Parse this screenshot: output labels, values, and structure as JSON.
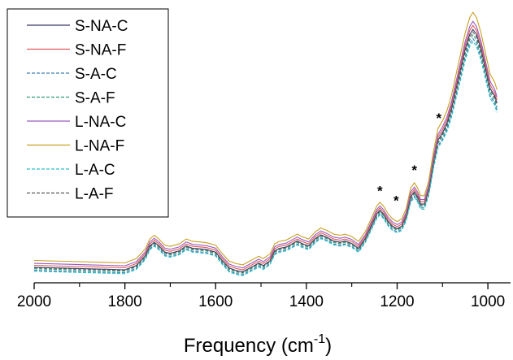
{
  "chart_data": {
    "type": "line",
    "title": "",
    "xlabel": "Frequency (cm",
    "xlabel_sup": "-1",
    "xlabel_end": ")",
    "ylabel": "",
    "xlim": [
      2000,
      950
    ],
    "ylim": [
      -0.05,
      1.05
    ],
    "x_reversed": true,
    "x_ticks": [
      2000,
      1800,
      1600,
      1400,
      1200,
      1000
    ],
    "x_tick_labels": [
      "2000",
      "1800",
      "1600",
      "1400",
      "1200",
      "1000"
    ],
    "grid": false,
    "legend_position": "top-left",
    "annotations": [
      {
        "text": "*",
        "x": 1238,
        "y": 0.305
      },
      {
        "text": "*",
        "x": 1202,
        "y": 0.265
      },
      {
        "text": "*",
        "x": 1162,
        "y": 0.39
      },
      {
        "text": "*",
        "x": 1108,
        "y": 0.6
      }
    ],
    "series": [
      {
        "name": "S-NA-C",
        "color": "#3b3b6b",
        "dash": "solid",
        "offset": 0.0,
        "peak_scale": 1.0
      },
      {
        "name": "S-NA-F",
        "color": "#e05a5a",
        "dash": "solid",
        "offset": 0.008,
        "peak_scale": 1.01
      },
      {
        "name": "S-A-C",
        "color": "#3a7fb0",
        "dash": "dashed",
        "offset": -0.012,
        "peak_scale": 0.97
      },
      {
        "name": "S-A-F",
        "color": "#2e9a7a",
        "dash": "dashed",
        "offset": -0.006,
        "peak_scale": 0.98
      },
      {
        "name": "L-NA-C",
        "color": "#9a5cc0",
        "dash": "solid",
        "offset": 0.016,
        "peak_scale": 1.02
      },
      {
        "name": "L-NA-F",
        "color": "#c9a020",
        "dash": "solid",
        "offset": 0.028,
        "peak_scale": 1.05
      },
      {
        "name": "L-A-C",
        "color": "#2bbfc9",
        "dash": "dashed",
        "offset": -0.016,
        "peak_scale": 0.96
      },
      {
        "name": "L-A-F",
        "color": "#555555",
        "dash": "dashed",
        "offset": -0.002,
        "peak_scale": 0.99
      }
    ],
    "base_curve": {
      "x": [
        2000,
        1900,
        1800,
        1775,
        1755,
        1745,
        1735,
        1725,
        1712,
        1700,
        1680,
        1665,
        1650,
        1635,
        1620,
        1600,
        1585,
        1570,
        1555,
        1540,
        1525,
        1515,
        1505,
        1495,
        1480,
        1470,
        1460,
        1445,
        1430,
        1420,
        1410,
        1395,
        1380,
        1368,
        1355,
        1340,
        1325,
        1315,
        1300,
        1285,
        1270,
        1255,
        1245,
        1238,
        1230,
        1220,
        1210,
        1200,
        1190,
        1180,
        1170,
        1162,
        1155,
        1148,
        1140,
        1130,
        1120,
        1110,
        1100,
        1090,
        1080,
        1070,
        1060,
        1050,
        1040,
        1033,
        1025,
        1015,
        1005,
        995,
        985,
        980
      ],
      "y": [
        0.013,
        0.008,
        0.003,
        0.02,
        0.06,
        0.1,
        0.115,
        0.1,
        0.075,
        0.07,
        0.08,
        0.1,
        0.09,
        0.088,
        0.085,
        0.075,
        0.04,
        0.01,
        0.0,
        -0.005,
        0.01,
        0.02,
        0.03,
        0.02,
        0.04,
        0.08,
        0.09,
        0.095,
        0.11,
        0.12,
        0.11,
        0.1,
        0.13,
        0.145,
        0.135,
        0.12,
        0.115,
        0.12,
        0.11,
        0.09,
        0.13,
        0.19,
        0.23,
        0.245,
        0.23,
        0.2,
        0.18,
        0.17,
        0.18,
        0.22,
        0.3,
        0.32,
        0.3,
        0.27,
        0.27,
        0.33,
        0.44,
        0.53,
        0.56,
        0.6,
        0.66,
        0.74,
        0.82,
        0.9,
        0.96,
        0.98,
        0.96,
        0.9,
        0.82,
        0.74,
        0.71,
        0.68
      ]
    }
  }
}
